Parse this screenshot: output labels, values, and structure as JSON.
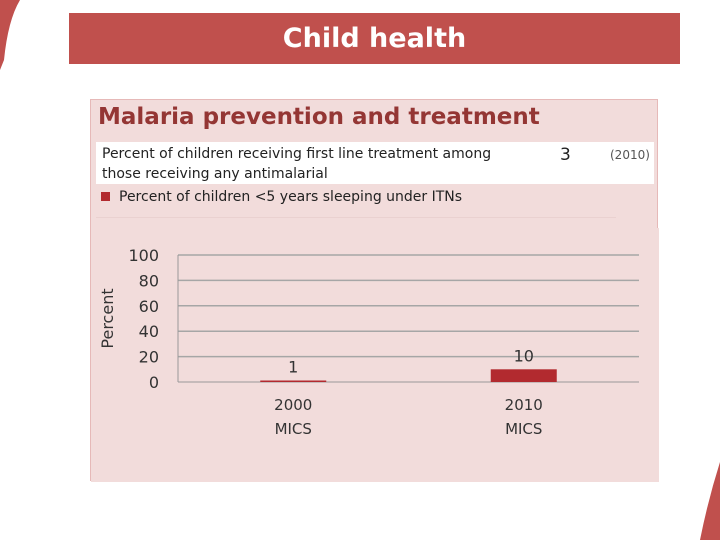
{
  "slide": {
    "title": "Child health"
  },
  "panel": {
    "title": "Malaria prevention and treatment",
    "info_line1": "Percent of children receiving first line treatment among",
    "info_line2": "those receiving any antimalarial",
    "info_value": "3",
    "info_year": "(2010)",
    "legend_label": "Percent of children <5 years sleeping under ITNs"
  },
  "colors": {
    "accent": "#c0504d",
    "bar": "#b22a2f",
    "panel_bg": "#f2dcdb"
  },
  "chart_data": {
    "type": "bar",
    "categories": [
      [
        "2000",
        "MICS"
      ],
      [
        "2010",
        "MICS"
      ]
    ],
    "values": [
      1,
      10
    ],
    "data_labels": [
      "1",
      "10"
    ],
    "ylabel": "Percent",
    "ylim": [
      0,
      100
    ],
    "yticks": [
      0,
      20,
      40,
      60,
      80,
      100
    ],
    "grid": true,
    "legend": "none"
  }
}
